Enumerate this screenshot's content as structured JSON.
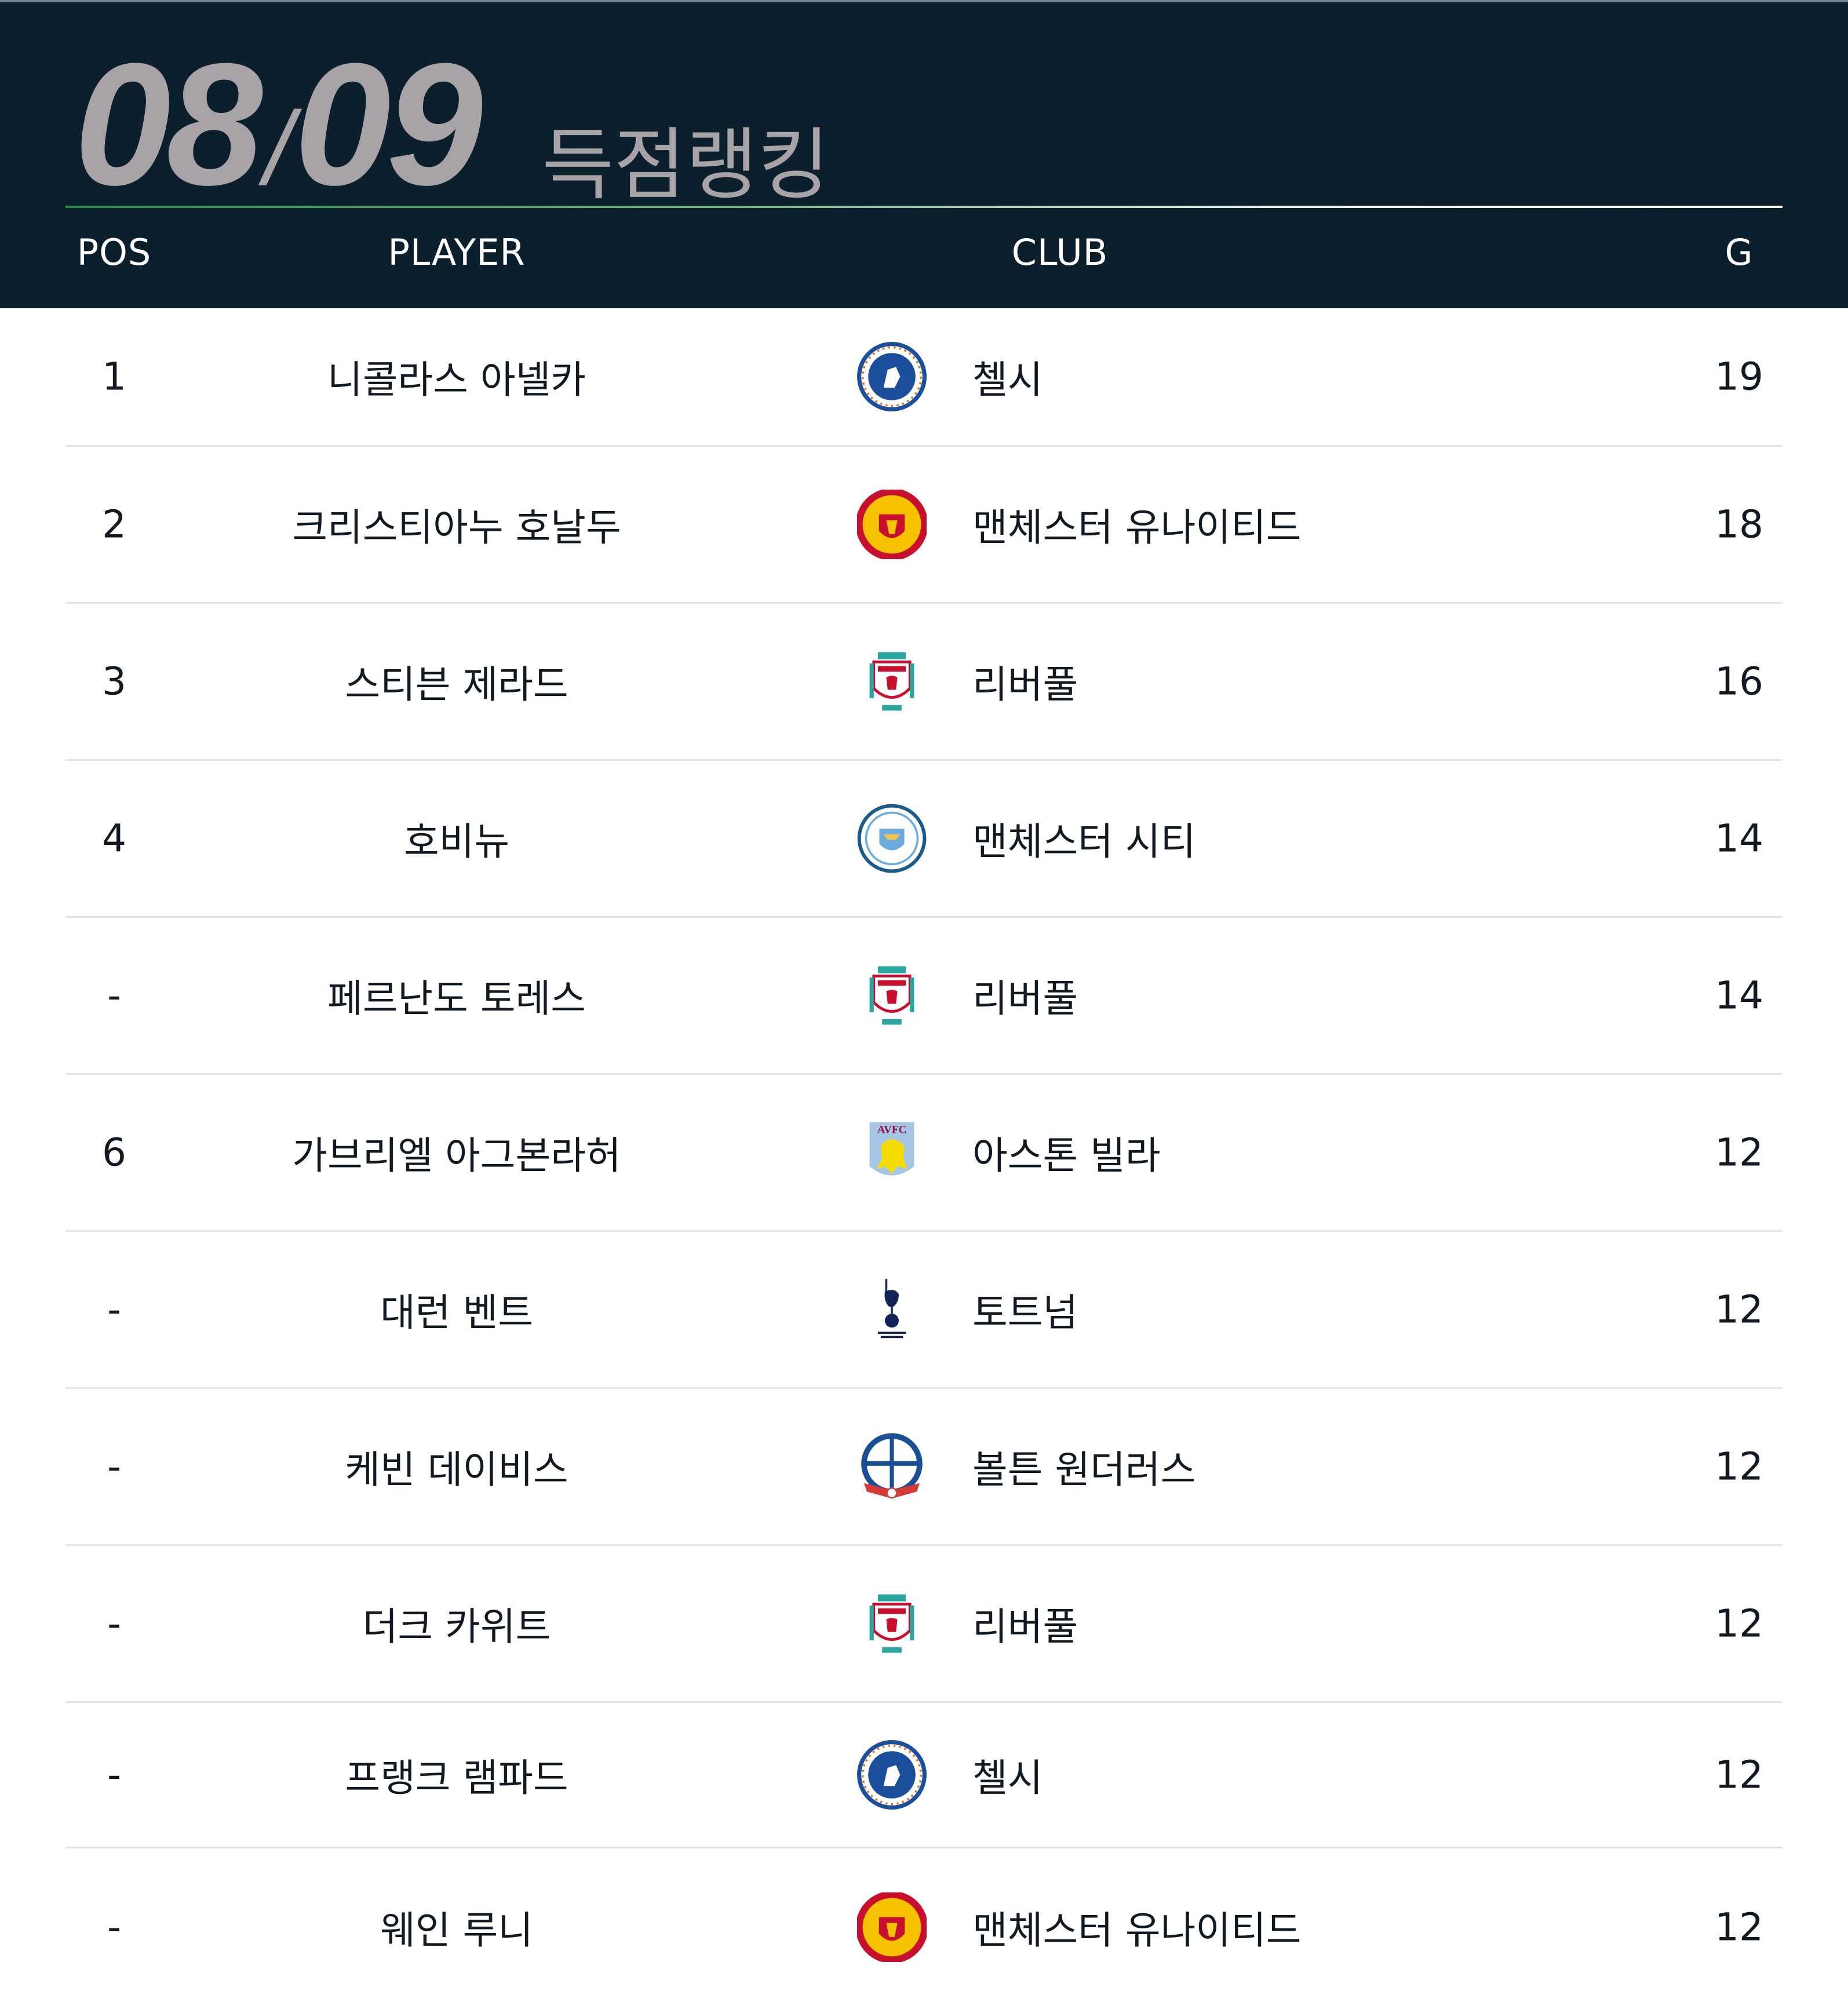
{
  "header": {
    "season": "08/09",
    "season_a": "08",
    "season_sep": "/",
    "season_b": "09",
    "title": "득점랭킹",
    "columns": {
      "pos": "POS",
      "player": "PLAYER",
      "club": "CLUB",
      "goals": "G"
    },
    "accent_gradient": [
      "#1e8a48",
      "#ffffff"
    ],
    "background": "#0c1f2c"
  },
  "rows": [
    {
      "pos": "1",
      "player": "니콜라스 아넬카",
      "club": "첼시",
      "crest": "chelsea-crest-icon",
      "goals": "19"
    },
    {
      "pos": "2",
      "player": "크리스티아누 호날두",
      "club": "맨체스터 유나이티드",
      "crest": "manutd-crest-icon",
      "goals": "18"
    },
    {
      "pos": "3",
      "player": "스티븐 제라드",
      "club": "리버풀",
      "crest": "liverpool-crest-icon",
      "goals": "16"
    },
    {
      "pos": "4",
      "player": "호비뉴",
      "club": "맨체스터 시티",
      "crest": "mancity-crest-icon",
      "goals": "14"
    },
    {
      "pos": "-",
      "player": "페르난도 토레스",
      "club": "리버풀",
      "crest": "liverpool-crest-icon",
      "goals": "14"
    },
    {
      "pos": "6",
      "player": "가브리엘 아그본라허",
      "club": "아스톤 빌라",
      "crest": "astonvilla-crest-icon",
      "goals": "12"
    },
    {
      "pos": "-",
      "player": "대런 벤트",
      "club": "토트넘",
      "crest": "tottenham-crest-icon",
      "goals": "12"
    },
    {
      "pos": "-",
      "player": "케빈 데이비스",
      "club": "볼튼 원더러스",
      "crest": "bolton-crest-icon",
      "goals": "12"
    },
    {
      "pos": "-",
      "player": "더크 카위트",
      "club": "리버풀",
      "crest": "liverpool-crest-icon",
      "goals": "12"
    },
    {
      "pos": "-",
      "player": "프랭크 램파드",
      "club": "첼시",
      "crest": "chelsea-crest-icon",
      "goals": "12"
    },
    {
      "pos": "-",
      "player": "웨인 루니",
      "club": "맨체스터 유나이티드",
      "crest": "manutd-crest-icon",
      "goals": "12"
    }
  ]
}
